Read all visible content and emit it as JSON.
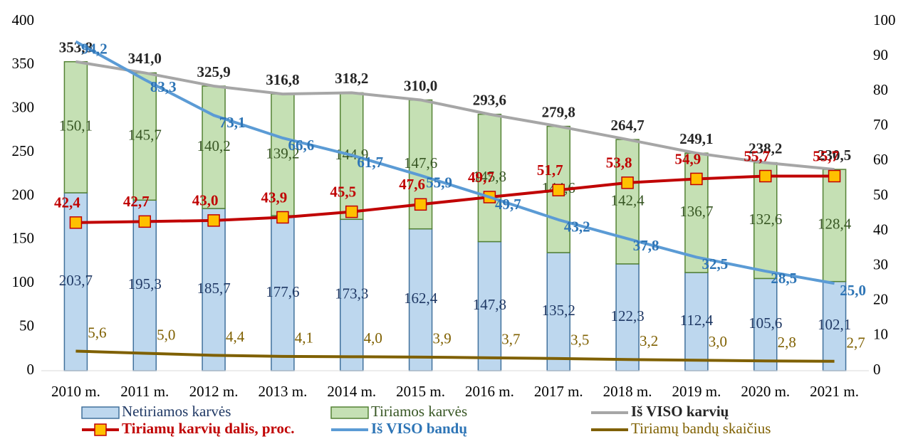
{
  "chart_data": {
    "type": "bar",
    "categories": [
      "2010 m.",
      "2011 m.",
      "2012 m.",
      "2013 m.",
      "2014 m.",
      "2015 m.",
      "2016 m.",
      "2017 m.",
      "2018 m.",
      "2019 m.",
      "2020 m.",
      "2021 m."
    ],
    "ylim": [
      0,
      400
    ],
    "yticks": [
      0,
      50,
      100,
      150,
      200,
      250,
      300,
      350,
      400
    ],
    "y2lim": [
      0,
      100
    ],
    "y2ticks": [
      0,
      10,
      20,
      30,
      40,
      50,
      60,
      70,
      80,
      90,
      100
    ],
    "series": [
      {
        "name": "Netiriamos karvės",
        "type": "bar",
        "color": "#bdd7ee",
        "stroke": "#41719c",
        "values": [
          203.7,
          195.3,
          185.7,
          177.6,
          173.3,
          162.4,
          147.8,
          135.2,
          122.3,
          112.4,
          105.6,
          102.1
        ],
        "value_labels": [
          "203,7",
          "195,3",
          "185,7",
          "177,6",
          "173,3",
          "162,4",
          "147,8",
          "135,2",
          "122,3",
          "112,4",
          "105,6",
          "102,1"
        ]
      },
      {
        "name": "Tiriamos karvės",
        "type": "bar",
        "color": "#c5e0b4",
        "stroke": "#548235",
        "values": [
          150.1,
          145.7,
          140.2,
          139.2,
          144.9,
          147.6,
          145.8,
          144.6,
          142.4,
          136.7,
          132.6,
          128.4
        ],
        "value_labels": [
          "150,1",
          "145,7",
          "140,2",
          "139,2",
          "144,9",
          "147,6",
          "145,8",
          "144,6",
          "142,4",
          "136,7",
          "132,6",
          "128,4"
        ]
      },
      {
        "name": "Iš VISO karvių",
        "type": "line",
        "color": "#a6a6a6",
        "values": [
          353.8,
          341.0,
          325.9,
          316.8,
          318.2,
          310.0,
          293.6,
          279.8,
          264.7,
          249.1,
          238.2,
          230.5
        ],
        "value_labels": [
          "353,8",
          "341,0",
          "325,9",
          "316,8",
          "318,2",
          "310,0",
          "293,6",
          "279,8",
          "264,7",
          "249,1",
          "238,2",
          "230,5"
        ]
      },
      {
        "name": "Tiriamų karvių dalis, proc.",
        "type": "line",
        "axis": "y2",
        "color": "#c00000",
        "marker_color": "#ffc000",
        "values": [
          42.4,
          42.7,
          43.0,
          43.9,
          45.5,
          47.6,
          49.7,
          51.7,
          53.8,
          54.9,
          55.7,
          55.7
        ],
        "value_labels": [
          "42,4",
          "42,7",
          "43,0",
          "43,9",
          "45,5",
          "47,6",
          "49,7",
          "51,7",
          "53,8",
          "54,9",
          "55,7",
          "55,7"
        ]
      },
      {
        "name": "Iš VISO bandų",
        "type": "line",
        "axis": "y2",
        "color": "#5b9bd5",
        "values": [
          94.2,
          83.3,
          73.1,
          66.6,
          61.7,
          55.9,
          49.7,
          43.2,
          37.8,
          32.5,
          28.5,
          25.0
        ],
        "value_labels": [
          "94,2",
          "83,3",
          "73,1",
          "66,6",
          "61,7",
          "55,9",
          "49,7",
          "43,2",
          "37,8",
          "32,5",
          "28,5",
          "25,0"
        ]
      },
      {
        "name": "Tiriamų bandų skaičius",
        "type": "line",
        "axis": "y2",
        "color": "#7f6000",
        "values": [
          5.6,
          5.0,
          4.4,
          4.1,
          4.0,
          3.9,
          3.7,
          3.5,
          3.2,
          3.0,
          2.8,
          2.7
        ],
        "value_labels": [
          "5,6",
          "5,0",
          "4,4",
          "4,1",
          "4,0",
          "3,9",
          "3,7",
          "3,5",
          "3,2",
          "3,0",
          "2,8",
          "2,7"
        ]
      }
    ]
  }
}
